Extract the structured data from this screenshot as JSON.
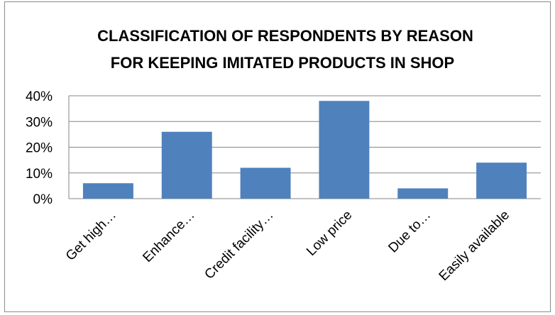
{
  "chart_data": {
    "type": "bar",
    "title": "CLASSIFICATION OF RESPONDENTS BY REASON FOR KEEPING IMITATED PRODUCTS IN SHOP",
    "title_lines": [
      "CLASSIFICATION OF RESPONDENTS BY REASON",
      "FOR KEEPING IMITATED PRODUCTS IN SHOP"
    ],
    "categories": [
      "Get high…",
      "Enhance…",
      "Credit facility…",
      "Low price",
      "Due to…",
      "Easily available"
    ],
    "values": [
      0.06,
      0.26,
      0.12,
      0.38,
      0.04,
      0.14
    ],
    "ylim": [
      0,
      0.4
    ],
    "yticks": [
      0,
      0.1,
      0.2,
      0.3,
      0.4
    ],
    "ytick_labels": [
      "0%",
      "10%",
      "20%",
      "30%",
      "40%"
    ],
    "xlabel": "",
    "ylabel": "",
    "grid": true,
    "legend": "none",
    "bar_color": "#4f81bd",
    "grid_color": "#868686"
  }
}
